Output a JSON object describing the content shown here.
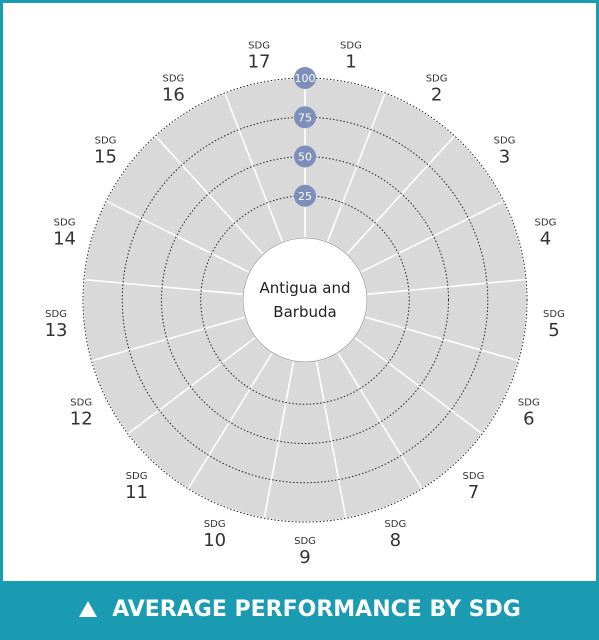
{
  "chart_data": {
    "type": "radial",
    "center_label": "Antigua and Barbuda",
    "category_prefix": "SDG",
    "categories": [
      "1",
      "2",
      "3",
      "4",
      "5",
      "6",
      "7",
      "8",
      "9",
      "10",
      "11",
      "12",
      "13",
      "14",
      "15",
      "16",
      "17"
    ],
    "rlim": [
      0,
      100
    ],
    "rticks": [
      25,
      50,
      75,
      100
    ],
    "sector_color": "#d9d9d9",
    "tick_badge_color": "#7b8fba",
    "footer": "AVERAGE PERFORMANCE BY SDG"
  }
}
